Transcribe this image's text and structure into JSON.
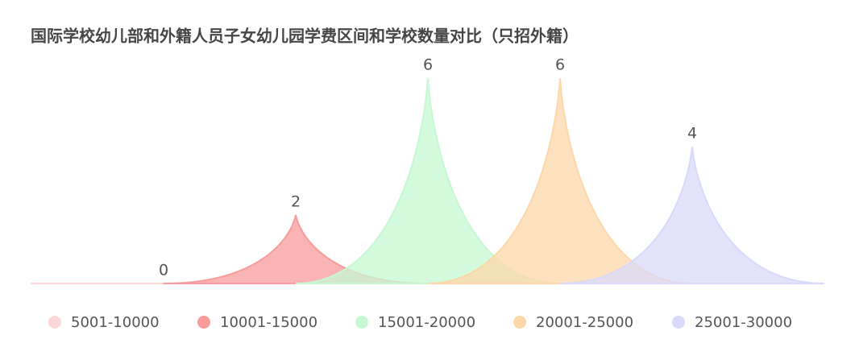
{
  "chart_data": {
    "type": "spike",
    "title": "国际学校幼儿部和外籍人员子女幼儿园学费区间和学校数量对比（只招外籍）",
    "categories": [
      "5001-10000",
      "10001-15000",
      "15001-20000",
      "20001-25000",
      "25001-30000"
    ],
    "values": [
      0,
      2,
      6,
      6,
      4
    ],
    "colors": [
      "#fcd6d6",
      "#f99b9b",
      "#c6f9d3",
      "#fdd7a9",
      "#d9d9fb"
    ],
    "legend": "bottom"
  }
}
